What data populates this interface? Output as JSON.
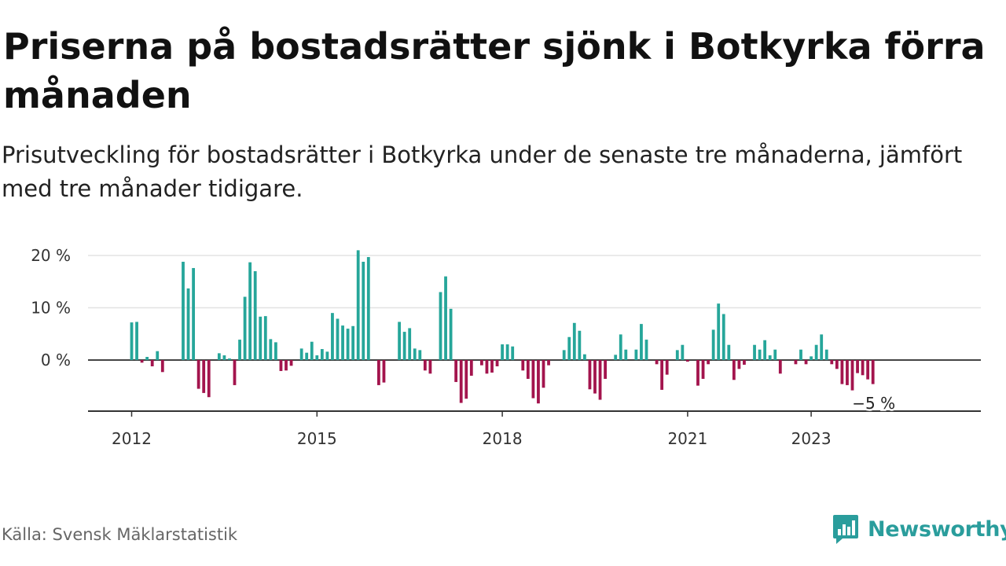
{
  "title": "Priserna på bostadsrätter sjönk i Botkyrka förra månaden",
  "subtitle": "Prisutveckling för bostadsrätter i Botkyrka under de senaste tre månaderna, jämfört med tre månader tidigare.",
  "source": "Källa: Svensk Mäklarstatistik",
  "logo": {
    "name": "Newsworthy",
    "icon": "newsworthy-logo-icon"
  },
  "colors": {
    "positive": "#26a69a",
    "negative": "#a3144d",
    "grid": "#e3e3e3",
    "axis": "#333333",
    "brand": "#2a9d9c"
  },
  "chart_data": {
    "type": "bar",
    "title": "Priserna på bostadsrätter sjönk i Botkyrka förra månaden",
    "subtitle": "Prisutveckling för bostadsrätter i Botkyrka under de senaste tre månaderna, jämfört med tre månader tidigare.",
    "xlabel": "",
    "ylabel": "",
    "x_start": "2012-01",
    "x_ticks": [
      {
        "label": "2012",
        "month": "2012-01"
      },
      {
        "label": "2015",
        "month": "2015-01"
      },
      {
        "label": "2018",
        "month": "2018-01"
      },
      {
        "label": "2021",
        "month": "2021-01"
      },
      {
        "label": "2023",
        "month": "2023-01"
      }
    ],
    "y_ticks": [
      {
        "value": 0,
        "label": "0 %"
      },
      {
        "value": 10,
        "label": "10 %"
      },
      {
        "value": 20,
        "label": "20 %"
      }
    ],
    "ylim": [
      -10,
      20
    ],
    "grid": true,
    "end_label": "−5 %",
    "values": [
      7.2,
      7.3,
      -0.5,
      0.6,
      -1.2,
      1.7,
      -2.3,
      null,
      null,
      null,
      18.8,
      13.7,
      17.6,
      -5.5,
      -6.3,
      -7.1,
      null,
      1.3,
      0.9,
      0.3,
      -4.8,
      3.9,
      12.1,
      18.7,
      17.0,
      8.3,
      8.4,
      4.0,
      3.4,
      -2.1,
      -2.0,
      -1.1,
      null,
      2.2,
      1.4,
      3.5,
      0.9,
      2.1,
      1.6,
      9.0,
      7.9,
      6.6,
      6.0,
      6.5,
      21.0,
      18.8,
      19.7,
      null,
      -4.8,
      -4.3,
      null,
      null,
      7.3,
      5.4,
      6.1,
      2.2,
      1.9,
      -2.0,
      -2.6,
      null,
      13.0,
      16.0,
      9.8,
      -4.2,
      -8.2,
      -7.4,
      -3.0,
      null,
      -1.0,
      -2.6,
      -2.4,
      -1.2,
      3.0,
      3.0,
      2.6,
      null,
      -2.0,
      -3.6,
      -7.3,
      -8.3,
      -5.3,
      -1.0,
      null,
      null,
      1.9,
      4.4,
      7.1,
      5.6,
      1.1,
      -5.6,
      -6.4,
      -7.6,
      -3.6,
      null,
      1.0,
      4.9,
      2.0,
      null,
      2.0,
      6.9,
      3.9,
      null,
      -0.8,
      -5.7,
      -2.8,
      null,
      1.9,
      2.9,
      -0.3,
      null,
      -4.9,
      -3.6,
      -0.8,
      5.8,
      10.8,
      8.8,
      2.9,
      -3.8,
      -1.7,
      -0.9,
      null,
      2.9,
      2.0,
      3.8,
      0.9,
      2.0,
      -2.6,
      null,
      null,
      -0.8,
      2.0,
      -0.8,
      0.7,
      2.9,
      4.9,
      2.0,
      -0.8,
      -1.7,
      -4.6,
      -4.8,
      -5.8,
      -2.5,
      -2.9,
      -3.7,
      -4.6
    ]
  }
}
